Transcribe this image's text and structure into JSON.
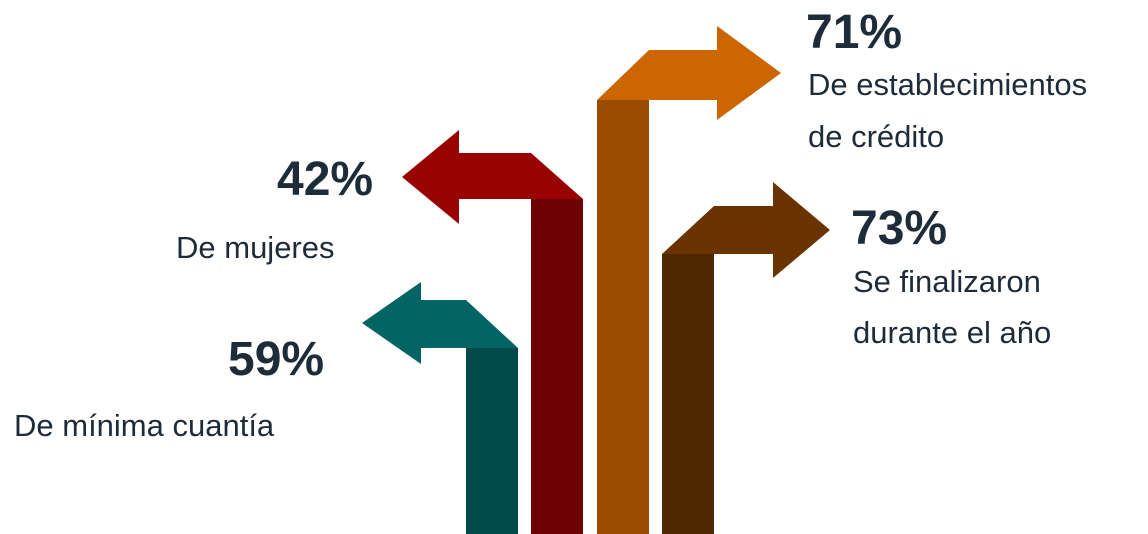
{
  "stats": [
    {
      "id": "minima-cuantia",
      "value": "59%",
      "description_lines": [
        "De mínima cuantía"
      ],
      "shaft_color": "#034b4b",
      "head_color": "#036563"
    },
    {
      "id": "mujeres",
      "value": "42%",
      "description_lines": [
        "De mujeres"
      ],
      "shaft_color": "#6d0000",
      "head_color": "#990000"
    },
    {
      "id": "establecimientos-credito",
      "value": "71%",
      "description_lines": [
        "De establecimientos",
        "de crédito"
      ],
      "shaft_color": "#9a4c00",
      "head_color": "#cc6600"
    },
    {
      "id": "finalizaron-ano",
      "value": "73%",
      "description_lines": [
        "Se finalizaron",
        "durante el año"
      ],
      "shaft_color": "#4f2800",
      "head_color": "#6a3400"
    }
  ]
}
